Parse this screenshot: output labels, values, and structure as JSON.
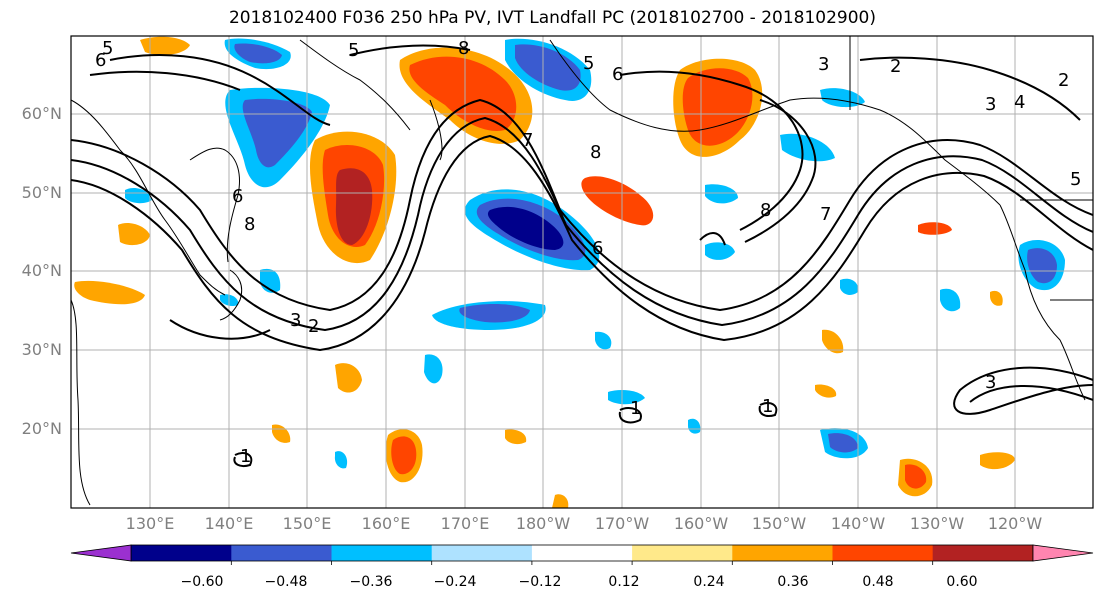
{
  "title": "2018102400 F036 250 hPa PV, IVT Landfall PC (2018102700 - 2018102900)",
  "lat_labels": [
    "60°N",
    "50°N",
    "40°N",
    "30°N",
    "20°N"
  ],
  "lon_labels": [
    "130°E",
    "140°E",
    "150°E",
    "160°E",
    "170°E",
    "180°W",
    "170°W",
    "160°W",
    "150°W",
    "140°W",
    "130°W",
    "120°W"
  ],
  "colorbar": {
    "labels": [
      "−0.60",
      "−0.48",
      "−0.36",
      "−0.24",
      "−0.12",
      "0.12",
      "0.24",
      "0.36",
      "0.48",
      "0.60"
    ],
    "bins": [
      {
        "color": "#9b30d0"
      },
      {
        "color": "#00008b"
      },
      {
        "color": "#3a5bd0"
      },
      {
        "color": "#00bfff"
      },
      {
        "color": "#aee2ff"
      },
      {
        "color": "#ffffff"
      },
      {
        "color": "#ffe98a"
      },
      {
        "color": "#ffa500"
      },
      {
        "color": "#ff4500"
      },
      {
        "color": "#b22222"
      },
      {
        "color": "#ff85b0"
      }
    ]
  },
  "contour_labels": [
    "5",
    "6",
    "5",
    "5",
    "6",
    "3",
    "2",
    "2",
    "3",
    "8",
    "8",
    "7",
    "8",
    "6",
    "7",
    "8",
    "4",
    "5",
    "3",
    "2",
    "3",
    "1",
    "1",
    "1",
    "6"
  ]
}
